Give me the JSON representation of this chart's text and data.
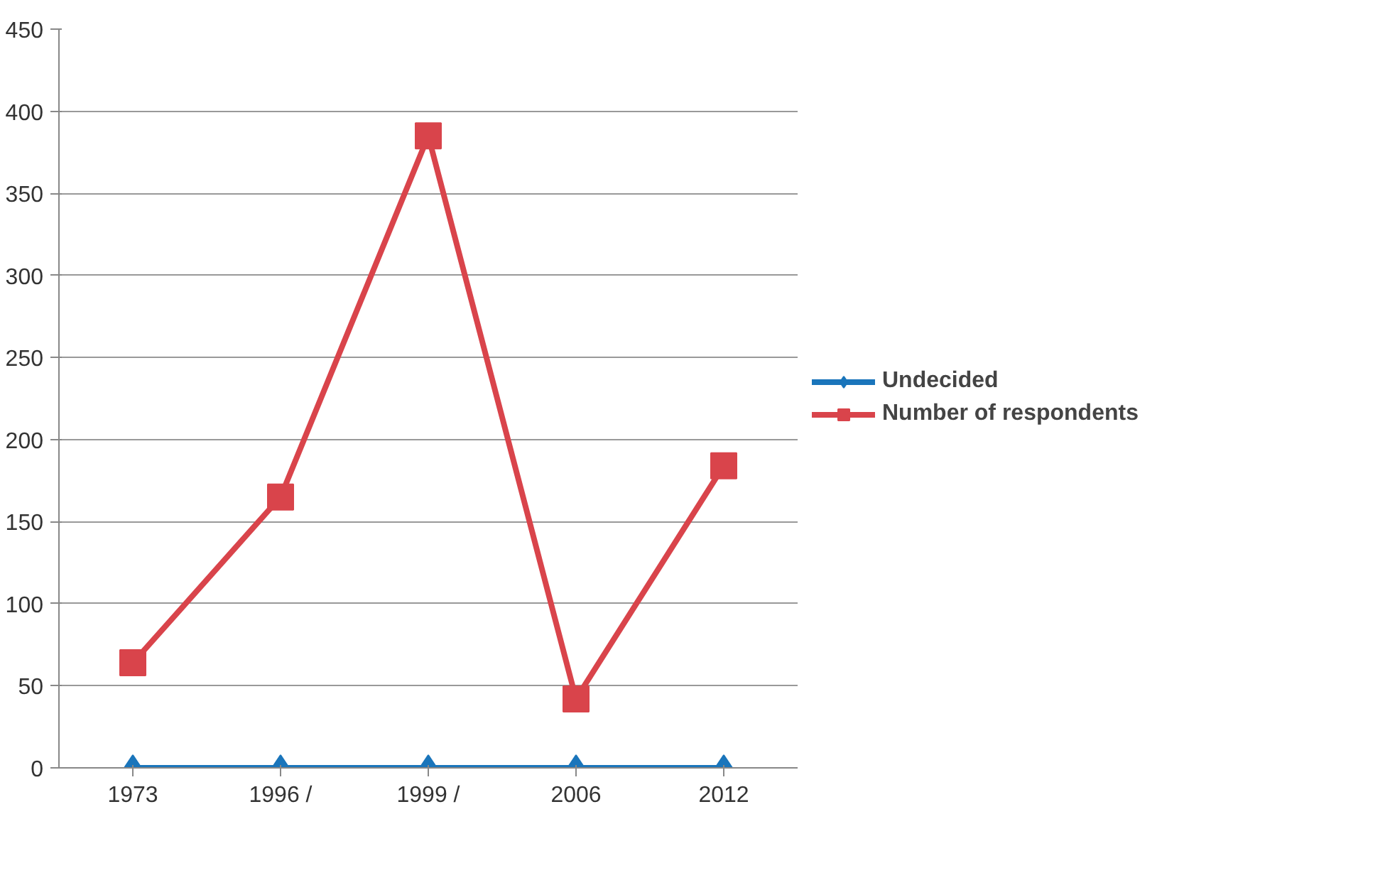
{
  "chart_data": {
    "type": "line",
    "categories": [
      "1973",
      "1996 /",
      "1999 /",
      "2006",
      "2012"
    ],
    "series": [
      {
        "name": "Undecided",
        "color": "#1a75bb",
        "marker": "diamond",
        "values": [
          0,
          0,
          0,
          0,
          0
        ]
      },
      {
        "name": "Number of respondents",
        "color": "#d9444b",
        "marker": "square",
        "values": [
          64,
          165,
          385,
          42,
          184
        ]
      }
    ],
    "ylim": [
      0,
      450
    ],
    "yticks": [
      0,
      50,
      100,
      150,
      200,
      250,
      300,
      350,
      400,
      450
    ],
    "grid": "y",
    "legend": "right",
    "line_style": "solid"
  }
}
